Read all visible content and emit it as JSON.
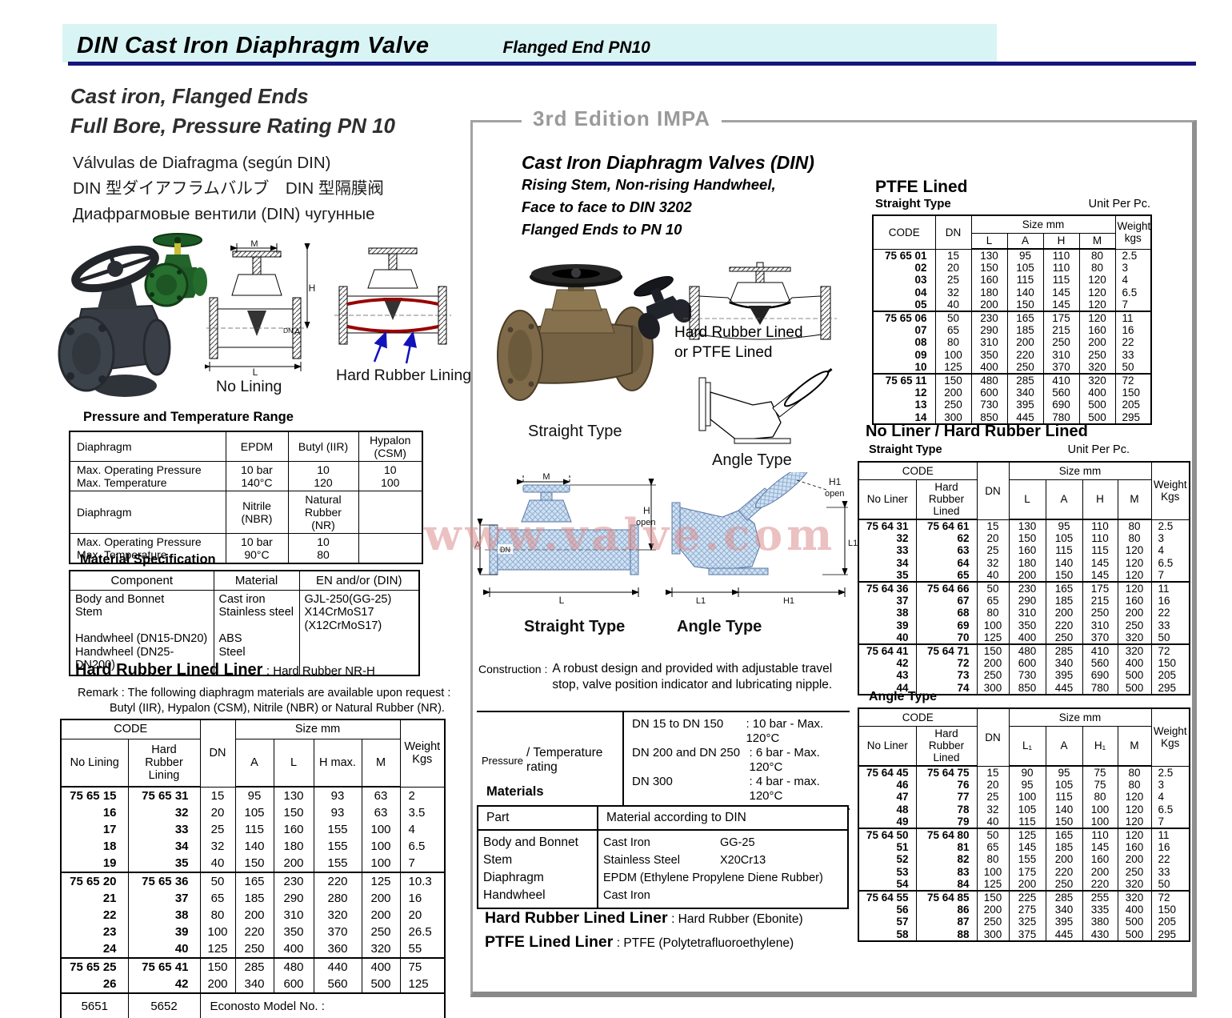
{
  "header": {
    "title": "DIN Cast Iron Diaphragm Valve",
    "subtitle": "Flanged End   PN10"
  },
  "left": {
    "heading_line1": "Cast iron, Flanged Ends",
    "heading_line2": "Full Bore, Pressure Rating PN 10",
    "lang_es": "Válvulas de Diafragma (según DIN)",
    "lang_jp": "DIN 型ダイアフラムバルブ　DIN 型隔膜阀",
    "lang_ru": "Диафрагмовые вентили (DIN) чугунные",
    "diagram": {
      "m": "M",
      "h": "H",
      "dn": "DN",
      "a": "A",
      "l": "L",
      "no_lining_caption": "No Lining",
      "hrl_caption": "Hard Rubber Lining"
    },
    "pt_range": {
      "title": "Pressure and Temperature Range",
      "rows": [
        [
          "Diaphragm",
          "EPDM",
          "Butyl (IIR)",
          "Hypalon\n(CSM)"
        ],
        [
          "Max. Operating Pressure\nMax. Temperature",
          "10 bar\n140°C",
          "10\n120",
          "10\n100"
        ],
        [
          "Diaphragm",
          "Nitrile\n(NBR)",
          "Natural\nRubber (NR)",
          ""
        ],
        [
          "Max. Operating Pressure\nMax. Temperature",
          "10 bar\n90°C",
          "10\n80",
          ""
        ]
      ]
    },
    "material_spec": {
      "title": "Material Specification",
      "h_component": "Component",
      "h_material": "Material",
      "h_en": "EN and/or (DIN)",
      "component": "Body and Bonnet\nStem\n \nHandwheel (DN15-DN20)\nHandwheel (DN25-DN200)",
      "material": "Cast iron\nStainless steel\n \nABS\nSteel",
      "en_din": "GJL-250(GG-25)\nX14CrMoS17\n(X12CrMoS17)"
    },
    "liner_note_label": "Hard Rubber Lined Liner",
    "liner_note_value": ": Hard Rubber   NR-H",
    "remark_line1": "Remark : The following diaphragm materials are available upon request :",
    "remark_line2": "Butyl (IIR), Hypalon (CSM), Nitrile (NBR) or Natural Rubber (NR).",
    "code_table": {
      "h_code": "CODE",
      "h_no_lining": "No Lining",
      "h_hrl": "Hard\nRubber\nLining",
      "h_dn": "DN",
      "h_size": "Size mm",
      "h_a": "A",
      "h_l": "L",
      "h_hmax": "H max.",
      "h_m": "M",
      "h_weight": "Weight\nKgs",
      "groups": [
        [
          [
            "75 65 15",
            "75 65 31",
            "15",
            "95",
            "130",
            "93",
            "63",
            "2"
          ],
          [
            "16",
            "32",
            "20",
            "105",
            "150",
            "93",
            "63",
            "3.5"
          ],
          [
            "17",
            "33",
            "25",
            "115",
            "160",
            "155",
            "100",
            "4"
          ],
          [
            "18",
            "34",
            "32",
            "140",
            "180",
            "155",
            "100",
            "6.5"
          ],
          [
            "19",
            "35",
            "40",
            "150",
            "200",
            "155",
            "100",
            "7"
          ]
        ],
        [
          [
            "75 65 20",
            "75 65 36",
            "50",
            "165",
            "230",
            "220",
            "125",
            "10.3"
          ],
          [
            "21",
            "37",
            "65",
            "185",
            "290",
            "280",
            "200",
            "16"
          ],
          [
            "22",
            "38",
            "80",
            "200",
            "310",
            "320",
            "200",
            "20"
          ],
          [
            "23",
            "39",
            "100",
            "220",
            "350",
            "370",
            "250",
            "26.5"
          ],
          [
            "24",
            "40",
            "125",
            "250",
            "400",
            "360",
            "320",
            "55"
          ]
        ],
        [
          [
            "75 65 25",
            "75 65 41",
            "150",
            "285",
            "480",
            "440",
            "400",
            "75"
          ],
          [
            "26",
            "42",
            "200",
            "340",
            "600",
            "560",
            "500",
            "125"
          ]
        ]
      ],
      "footer": [
        "5651",
        "5652",
        "Econosto Model No. :"
      ]
    }
  },
  "middle": {
    "edition": "3rd Edition IMPA",
    "title": "Cast Iron Diaphragm Valves (DIN)",
    "sub1": "Rising Stem, Non-rising Handwheel,",
    "sub2": "Face to face to DIN 3202",
    "sub3": "Flanged Ends to PN 10",
    "straight_photo_caption": "Straight Type",
    "hrl_caption1": "Hard Rubber Lined",
    "hrl_caption2": "or PTFE Lined",
    "angle_drawing_caption": "Angle Type",
    "diag_straight_caption": "Straight Type",
    "diag_angle_caption": "Angle Type",
    "dims": {
      "m": "M",
      "h": "H",
      "open": "open",
      "a": "A",
      "dn": "DN",
      "l": "L",
      "h1": "H1",
      "l1": "L1"
    },
    "watermark": "www.valve.com",
    "construction_label": "Construction :",
    "construction_text": "A robust design and provided with adjustable travel stop, valve position indicator and lubricating nipple.",
    "pt_label_small": "Pressure",
    "pt_label_rest": "/ Temperature rating",
    "pt_rows": [
      [
        "DN  15 to DN 150",
        ": 10 bar - Max. 120°C"
      ],
      [
        "DN 200 and DN 250",
        ": 6 bar - Max. 120°C"
      ],
      [
        "DN 300",
        ": 4 bar - max. 120°C"
      ]
    ],
    "materials": {
      "title": "Materials",
      "h_part": "Part",
      "h_material": "Material according to DIN",
      "rows": [
        [
          "Body and Bonnet",
          "Cast Iron",
          "GG-25"
        ],
        [
          "Stem",
          "Stainless Steel",
          "X20Cr13"
        ],
        [
          "Diaphragm",
          "EPDM (Ethylene Propylene Diene Rubber)",
          ""
        ],
        [
          "Handwheel",
          "Cast Iron",
          ""
        ]
      ]
    },
    "hrl_liner_label": "Hard Rubber Lined Liner",
    "hrl_liner_value": ": Hard Rubber (Ebonite)",
    "ptfe_liner_label": "PTFE Lined  Liner",
    "ptfe_liner_value": ": PTFE (Polytetrafluoroethylene)"
  },
  "right": {
    "ptfe": {
      "title": "PTFE Lined",
      "type": "Straight Type",
      "unit": "Unit Per Pc.",
      "h_code": "CODE",
      "h_dn": "DN",
      "h_size": "Size mm",
      "h_l": "L",
      "h_a": "A",
      "h_h": "H",
      "h_m": "M",
      "h_weight": "Weight\nkgs",
      "groups": [
        [
          [
            "75 65 01",
            "15",
            "130",
            "95",
            "110",
            "80",
            "2.5"
          ],
          [
            "02",
            "20",
            "150",
            "105",
            "110",
            "80",
            "3"
          ],
          [
            "03",
            "25",
            "160",
            "115",
            "115",
            "120",
            "4"
          ],
          [
            "04",
            "32",
            "180",
            "140",
            "145",
            "120",
            "6.5"
          ],
          [
            "05",
            "40",
            "200",
            "150",
            "145",
            "120",
            "7"
          ]
        ],
        [
          [
            "75 65 06",
            "50",
            "230",
            "165",
            "175",
            "120",
            "11"
          ],
          [
            "07",
            "65",
            "290",
            "185",
            "215",
            "160",
            "16"
          ],
          [
            "08",
            "80",
            "310",
            "200",
            "250",
            "200",
            "22"
          ],
          [
            "09",
            "100",
            "350",
            "220",
            "310",
            "250",
            "33"
          ],
          [
            "10",
            "125",
            "400",
            "250",
            "370",
            "320",
            "50"
          ]
        ],
        [
          [
            "75 65 11",
            "150",
            "480",
            "285",
            "410",
            "320",
            "72"
          ],
          [
            "12",
            "200",
            "600",
            "340",
            "560",
            "400",
            "150"
          ],
          [
            "13",
            "250",
            "730",
            "395",
            "690",
            "500",
            "205"
          ],
          [
            "14",
            "300",
            "850",
            "445",
            "780",
            "500",
            "295"
          ]
        ]
      ]
    },
    "noliner": {
      "title": "No Liner / Hard Rubber Lined",
      "type": "Straight Type",
      "unit": "Unit Per Pc.",
      "h_code": "CODE",
      "h_no_liner": "No Liner",
      "h_hrl": "Hard\nRubber\nLined",
      "h_dn": "DN",
      "h_size": "Size mm",
      "h_l": "L",
      "h_a": "A",
      "h_h": "H",
      "h_m": "M",
      "h_weight": "Weight\nKgs",
      "groups": [
        [
          [
            "75 64 31",
            "75 64 61",
            "15",
            "130",
            "95",
            "110",
            "80",
            "2.5"
          ],
          [
            "32",
            "62",
            "20",
            "150",
            "105",
            "110",
            "80",
            "3"
          ],
          [
            "33",
            "63",
            "25",
            "160",
            "115",
            "115",
            "120",
            "4"
          ],
          [
            "34",
            "64",
            "32",
            "180",
            "140",
            "145",
            "120",
            "6.5"
          ],
          [
            "35",
            "65",
            "40",
            "200",
            "150",
            "145",
            "120",
            "7"
          ]
        ],
        [
          [
            "75 64 36",
            "75 64 66",
            "50",
            "230",
            "165",
            "175",
            "120",
            "11"
          ],
          [
            "37",
            "67",
            "65",
            "290",
            "185",
            "215",
            "160",
            "16"
          ],
          [
            "38",
            "68",
            "80",
            "310",
            "200",
            "250",
            "200",
            "22"
          ],
          [
            "39",
            "69",
            "100",
            "350",
            "220",
            "310",
            "250",
            "33"
          ],
          [
            "40",
            "70",
            "125",
            "400",
            "250",
            "370",
            "320",
            "50"
          ]
        ],
        [
          [
            "75 64 41",
            "75 64 71",
            "150",
            "480",
            "285",
            "410",
            "320",
            "72"
          ],
          [
            "42",
            "72",
            "200",
            "600",
            "340",
            "560",
            "400",
            "150"
          ],
          [
            "43",
            "73",
            "250",
            "730",
            "395",
            "690",
            "500",
            "205"
          ],
          [
            "44",
            "74",
            "300",
            "850",
            "445",
            "780",
            "500",
            "295"
          ]
        ]
      ]
    },
    "angle": {
      "title": "Angle Type",
      "h_code": "CODE",
      "h_no_liner": "No Liner",
      "h_hrl": "Hard\nRubber\nLined",
      "h_dn": "DN",
      "h_size": "Size mm",
      "h_l1": "L₁",
      "h_a": "A",
      "h_h1": "H₁",
      "h_m": "M",
      "h_weight": "Weight\nKgs",
      "groups": [
        [
          [
            "75 64 45",
            "75 64 75",
            "15",
            "90",
            "95",
            "75",
            "80",
            "2.5"
          ],
          [
            "46",
            "76",
            "20",
            "95",
            "105",
            "75",
            "80",
            "3"
          ],
          [
            "47",
            "77",
            "25",
            "100",
            "115",
            "80",
            "120",
            "4"
          ],
          [
            "48",
            "78",
            "32",
            "105",
            "140",
            "100",
            "120",
            "6.5"
          ],
          [
            "49",
            "79",
            "40",
            "115",
            "150",
            "100",
            "120",
            "7"
          ]
        ],
        [
          [
            "75 64 50",
            "75 64 80",
            "50",
            "125",
            "165",
            "110",
            "120",
            "11"
          ],
          [
            "51",
            "81",
            "65",
            "145",
            "185",
            "145",
            "160",
            "16"
          ],
          [
            "52",
            "82",
            "80",
            "155",
            "200",
            "160",
            "200",
            "22"
          ],
          [
            "53",
            "83",
            "100",
            "175",
            "220",
            "200",
            "250",
            "33"
          ],
          [
            "54",
            "84",
            "125",
            "200",
            "250",
            "220",
            "320",
            "50"
          ]
        ],
        [
          [
            "75 64 55",
            "75 64 85",
            "150",
            "225",
            "285",
            "255",
            "320",
            "72"
          ],
          [
            "56",
            "86",
            "200",
            "275",
            "340",
            "335",
            "400",
            "150"
          ],
          [
            "57",
            "87",
            "250",
            "325",
            "395",
            "380",
            "500",
            "205"
          ],
          [
            "58",
            "88",
            "300",
            "375",
            "445",
            "430",
            "500",
            "295"
          ]
        ]
      ]
    }
  }
}
